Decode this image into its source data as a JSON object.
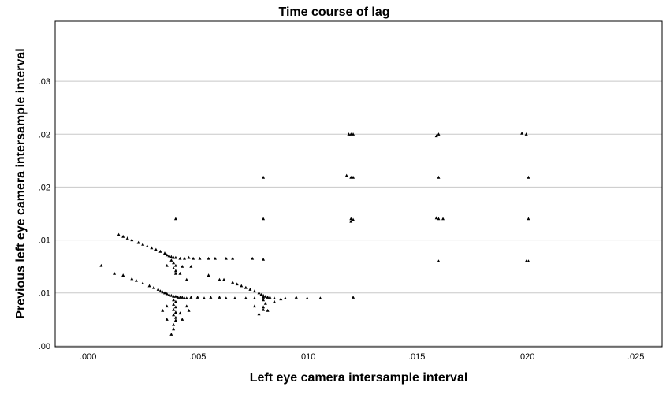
{
  "chart_data": {
    "type": "scatter",
    "title": "Time course of lag",
    "xlabel": "Left eye camera intersample interval",
    "ylabel": "Previous left eye camera intersample interval",
    "xlim": [
      -0.0015,
      0.0262
    ],
    "ylim": [
      -0.0001,
      0.0368
    ],
    "x_ticks": [
      {
        "value": 0.0,
        "label": ".000"
      },
      {
        "value": 0.005,
        "label": ".005"
      },
      {
        "value": 0.01,
        "label": ".010"
      },
      {
        "value": 0.015,
        "label": ".015"
      },
      {
        "value": 0.02,
        "label": ".020"
      },
      {
        "value": 0.025,
        "label": ".025"
      }
    ],
    "y_ticks": [
      {
        "value": 0.0,
        "label": ".00"
      },
      {
        "value": 0.006,
        "label": ".01"
      },
      {
        "value": 0.012,
        "label": ".01"
      },
      {
        "value": 0.018,
        "label": ".02"
      },
      {
        "value": 0.024,
        "label": ".02"
      },
      {
        "value": 0.03,
        "label": ".03"
      }
    ],
    "grid_y": true,
    "marker": "triangle",
    "points": [
      [
        0.0006,
        0.0091
      ],
      [
        0.0012,
        0.0082
      ],
      [
        0.0016,
        0.008
      ],
      [
        0.002,
        0.0076
      ],
      [
        0.0022,
        0.0074
      ],
      [
        0.0025,
        0.0071
      ],
      [
        0.0028,
        0.0068
      ],
      [
        0.003,
        0.0066
      ],
      [
        0.0032,
        0.0064
      ],
      [
        0.0033,
        0.0062
      ],
      [
        0.0034,
        0.0061
      ],
      [
        0.0035,
        0.006
      ],
      [
        0.0036,
        0.0059
      ],
      [
        0.0037,
        0.0058
      ],
      [
        0.0038,
        0.0057
      ],
      [
        0.0039,
        0.0056
      ],
      [
        0.004,
        0.0056
      ],
      [
        0.0041,
        0.0055
      ],
      [
        0.0042,
        0.0055
      ],
      [
        0.0043,
        0.0055
      ],
      [
        0.0044,
        0.0054
      ],
      [
        0.0045,
        0.0054
      ],
      [
        0.0047,
        0.0055
      ],
      [
        0.005,
        0.0055
      ],
      [
        0.0053,
        0.0054
      ],
      [
        0.0056,
        0.0055
      ],
      [
        0.006,
        0.0055
      ],
      [
        0.0063,
        0.0054
      ],
      [
        0.0067,
        0.0054
      ],
      [
        0.0072,
        0.0054
      ],
      [
        0.0076,
        0.0054
      ],
      [
        0.008,
        0.0055
      ],
      [
        0.0085,
        0.0054
      ],
      [
        0.009,
        0.0054
      ],
      [
        0.0095,
        0.0055
      ],
      [
        0.01,
        0.0054
      ],
      [
        0.0106,
        0.0054
      ],
      [
        0.0039,
        0.0052
      ],
      [
        0.004,
        0.005
      ],
      [
        0.0039,
        0.0047
      ],
      [
        0.004,
        0.0044
      ],
      [
        0.0039,
        0.0041
      ],
      [
        0.004,
        0.0038
      ],
      [
        0.0039,
        0.0035
      ],
      [
        0.004,
        0.0032
      ],
      [
        0.004,
        0.0029
      ],
      [
        0.0039,
        0.0024
      ],
      [
        0.0039,
        0.0019
      ],
      [
        0.0038,
        0.0013
      ],
      [
        0.0042,
        0.0037
      ],
      [
        0.0043,
        0.003
      ],
      [
        0.0046,
        0.004
      ],
      [
        0.0036,
        0.0045
      ],
      [
        0.0036,
        0.003
      ],
      [
        0.0034,
        0.004
      ],
      [
        0.0045,
        0.0045
      ],
      [
        0.0014,
        0.0126
      ],
      [
        0.0016,
        0.0124
      ],
      [
        0.0018,
        0.0122
      ],
      [
        0.002,
        0.012
      ],
      [
        0.0023,
        0.0117
      ],
      [
        0.0025,
        0.0115
      ],
      [
        0.0027,
        0.0113
      ],
      [
        0.0029,
        0.0111
      ],
      [
        0.0031,
        0.0109
      ],
      [
        0.0033,
        0.0107
      ],
      [
        0.0035,
        0.0105
      ],
      [
        0.0036,
        0.0103
      ],
      [
        0.0037,
        0.0102
      ],
      [
        0.0038,
        0.0101
      ],
      [
        0.0039,
        0.01
      ],
      [
        0.004,
        0.01
      ],
      [
        0.0042,
        0.0099
      ],
      [
        0.0044,
        0.0099
      ],
      [
        0.0046,
        0.01
      ],
      [
        0.0048,
        0.0099
      ],
      [
        0.0051,
        0.0099
      ],
      [
        0.0055,
        0.0099
      ],
      [
        0.0058,
        0.0099
      ],
      [
        0.0063,
        0.0099
      ],
      [
        0.0066,
        0.0099
      ],
      [
        0.0075,
        0.0099
      ],
      [
        0.008,
        0.0098
      ],
      [
        0.0038,
        0.0097
      ],
      [
        0.0039,
        0.0094
      ],
      [
        0.004,
        0.0091
      ],
      [
        0.0039,
        0.0088
      ],
      [
        0.004,
        0.0085
      ],
      [
        0.004,
        0.0082
      ],
      [
        0.0036,
        0.0091
      ],
      [
        0.0043,
        0.009
      ],
      [
        0.0047,
        0.009
      ],
      [
        0.0055,
        0.008
      ],
      [
        0.006,
        0.0075
      ],
      [
        0.0045,
        0.0075
      ],
      [
        0.0042,
        0.0082
      ],
      [
        0.004,
        0.0144
      ],
      [
        0.0062,
        0.0075
      ],
      [
        0.0066,
        0.0072
      ],
      [
        0.0068,
        0.007
      ],
      [
        0.007,
        0.0068
      ],
      [
        0.0072,
        0.0066
      ],
      [
        0.0074,
        0.0064
      ],
      [
        0.0076,
        0.0062
      ],
      [
        0.0078,
        0.006
      ],
      [
        0.0079,
        0.0058
      ],
      [
        0.008,
        0.0057
      ],
      [
        0.0081,
        0.0056
      ],
      [
        0.0082,
        0.0055
      ],
      [
        0.0083,
        0.0055
      ],
      [
        0.008,
        0.0052
      ],
      [
        0.0081,
        0.0048
      ],
      [
        0.008,
        0.0044
      ],
      [
        0.008,
        0.0041
      ],
      [
        0.0082,
        0.004
      ],
      [
        0.0078,
        0.0036
      ],
      [
        0.0076,
        0.0045
      ],
      [
        0.0085,
        0.005
      ],
      [
        0.0088,
        0.0053
      ],
      [
        0.008,
        0.0144
      ],
      [
        0.008,
        0.0191
      ],
      [
        0.0119,
        0.024
      ],
      [
        0.012,
        0.024
      ],
      [
        0.0121,
        0.024
      ],
      [
        0.0118,
        0.0193
      ],
      [
        0.012,
        0.0191
      ],
      [
        0.0121,
        0.0191
      ],
      [
        0.012,
        0.0144
      ],
      [
        0.0121,
        0.0143
      ],
      [
        0.012,
        0.0141
      ],
      [
        0.0121,
        0.0055
      ],
      [
        0.016,
        0.024
      ],
      [
        0.0159,
        0.0238
      ],
      [
        0.016,
        0.0191
      ],
      [
        0.016,
        0.0144
      ],
      [
        0.0159,
        0.0145
      ],
      [
        0.0162,
        0.0144
      ],
      [
        0.016,
        0.0096
      ],
      [
        0.0198,
        0.0241
      ],
      [
        0.02,
        0.024
      ],
      [
        0.0201,
        0.0191
      ],
      [
        0.0201,
        0.0144
      ],
      [
        0.02,
        0.0096
      ],
      [
        0.0201,
        0.0096
      ]
    ]
  }
}
